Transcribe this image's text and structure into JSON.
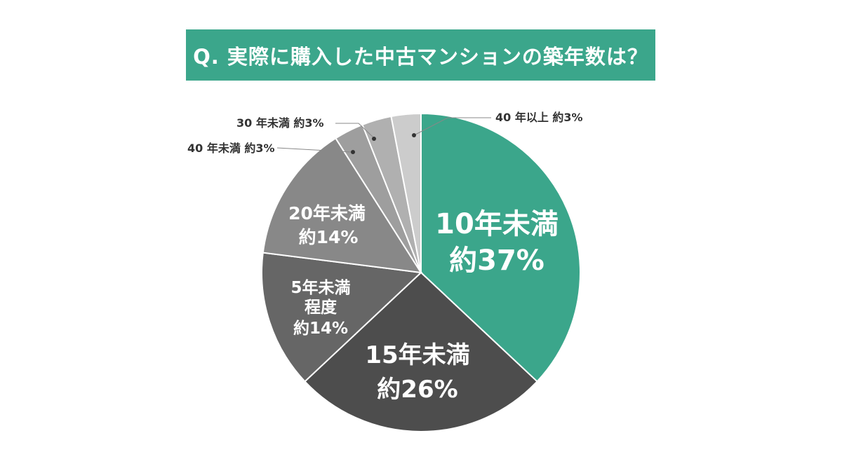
{
  "chart_data": {
    "type": "pie",
    "title": "Q. 実際に購入した中古マンションの築年数は？",
    "slices": [
      {
        "label": "10年未満",
        "percent_label": "約37%",
        "value": 37,
        "color": "#3ba68b"
      },
      {
        "label": "15年未満",
        "percent_label": "約26%",
        "value": 26,
        "color": "#4d4d4d"
      },
      {
        "label": "5年未満程度",
        "label_lines": [
          "5年未満",
          "程度"
        ],
        "percent_label": "約14%",
        "value": 14,
        "color": "#666666"
      },
      {
        "label": "20年未満",
        "percent_label": "約14%",
        "value": 14,
        "color": "#888888"
      },
      {
        "label": "40 年未満 約3%",
        "value": 3,
        "color": "#9e9e9e"
      },
      {
        "label": "30 年未満 約3%",
        "value": 3,
        "color": "#b0b0b0"
      },
      {
        "label": "40 年以上 約3%",
        "value": 3,
        "color": "#cccccc"
      }
    ]
  }
}
